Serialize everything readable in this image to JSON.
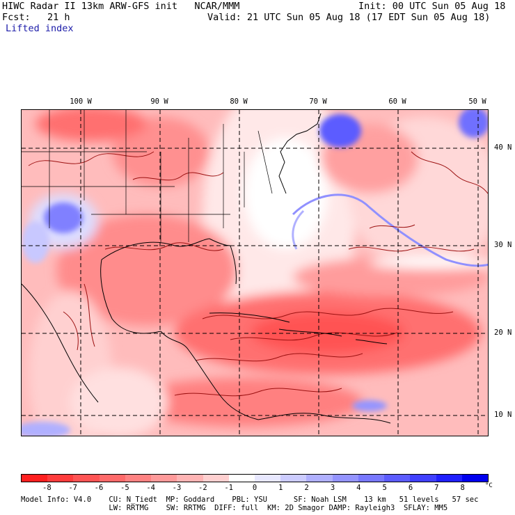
{
  "header": {
    "line1_left": "HIWC Radar II 13km ARW-GFS init   NCAR/MMM",
    "line1_right": "Init: 00 UTC Sun 05 Aug 18",
    "line2_left": "Fcst:   21 h",
    "line2_right": "Valid: 21 UTC Sun 05 Aug 18 (17 EDT Sun 05 Aug 18)",
    "field": "Lifted index"
  },
  "lon_labels": [
    "100 W",
    "90 W",
    "80 W",
    "70 W",
    "60 W",
    "50 W"
  ],
  "lat_labels": [
    "40 N",
    "30 N",
    "20 N",
    "10 N"
  ],
  "colorbar": {
    "labels": [
      "-8",
      "-7",
      "-6",
      "-5",
      "-4",
      "-3",
      "-2",
      "-1",
      "0",
      "1",
      "2",
      "3",
      "4",
      "5",
      "6",
      "7",
      "8"
    ],
    "unit": "°C",
    "colors": [
      "#ff2020",
      "#ff3c3c",
      "#ff5454",
      "#ff6a6a",
      "#ff8282",
      "#ff9a9a",
      "#ffb4b4",
      "#ffd0d0",
      "#ffffff",
      "#e8e8ff",
      "#ccccff",
      "#b0b0ff",
      "#9494ff",
      "#7878ff",
      "#5c5cff",
      "#4040ff",
      "#2020ff",
      "#0000ee"
    ]
  },
  "footer": {
    "line1": "Model Info: V4.0    CU: N_Tiedt  MP: Goddard    PBL: YSU      SF: Noah LSM    13 km   51 levels   57 sec",
    "line2": "                    LW: RRTMG    SW: RRTMG  DIFF: full  KM: 2D Smagor DAMP: Rayleigh3  SFLAY: MM5"
  }
}
